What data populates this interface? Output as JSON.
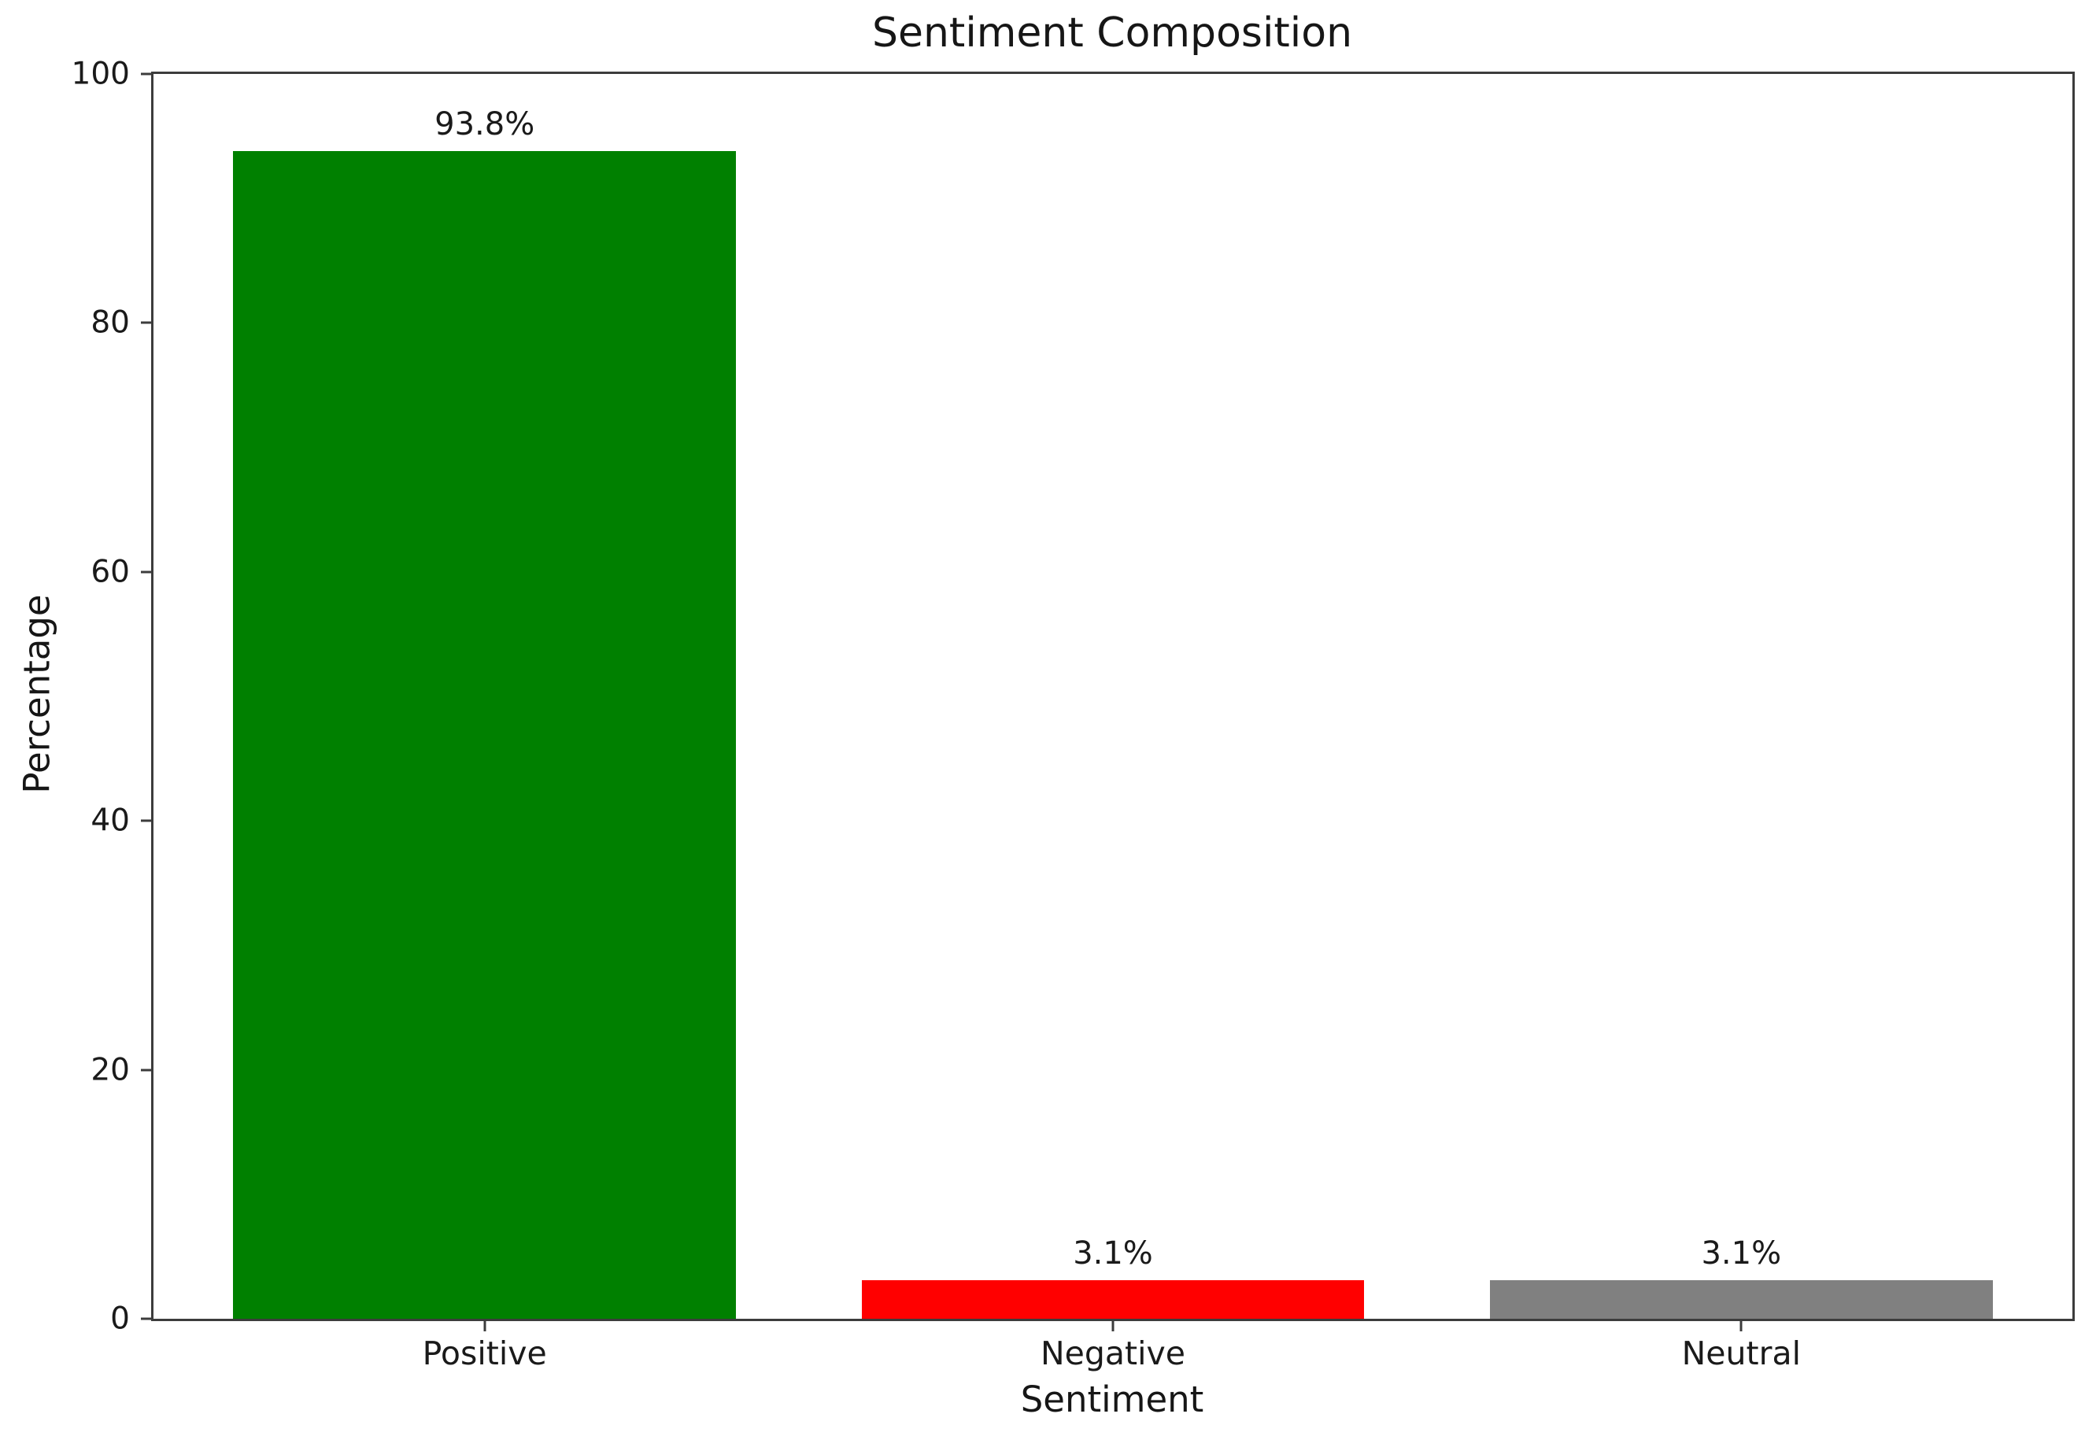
{
  "chart_data": {
    "type": "bar",
    "title": "Sentiment Composition",
    "xlabel": "Sentiment",
    "ylabel": "Percentage",
    "categories": [
      "Positive",
      "Negative",
      "Neutral"
    ],
    "values": [
      93.8,
      3.1,
      3.1
    ],
    "bar_labels": [
      "93.8%",
      "3.1%",
      "3.1%"
    ],
    "bar_colors": [
      "#008000",
      "#ff0000",
      "#808080"
    ],
    "ylim": [
      0,
      100
    ],
    "yticks": [
      0,
      20,
      40,
      60,
      80,
      100
    ],
    "xlim": [
      -0.527,
      2.527
    ],
    "bar_width_units": 0.8,
    "grid": false,
    "legend": "none",
    "background_color": "#ffffff",
    "axis_color": "#3c3c3c"
  }
}
